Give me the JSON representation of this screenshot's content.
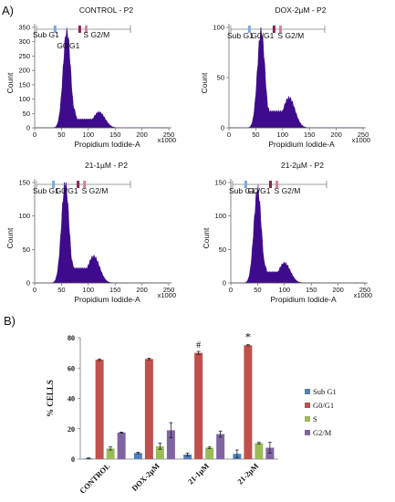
{
  "panel_a_label": "A)",
  "panel_b_label": "B)",
  "chart_data": [
    {
      "type": "area",
      "title": "CONTROL - P2",
      "xlabel": "Propidium Iodide-A",
      "ylabel": "Count",
      "x_multiplier": "x1000",
      "xlim": [
        0,
        250
      ],
      "ylim": [
        0,
        350
      ],
      "xticks": [
        "0",
        "50",
        "100",
        "150",
        "200",
        "250"
      ],
      "yticks": [
        "0",
        "50",
        "100",
        "150",
        "200",
        "250",
        "300",
        "350"
      ],
      "gates": [
        "Sub G1",
        "G0/G1",
        "S",
        "G2/M"
      ],
      "color": "#3d0b8c",
      "peaks": {
        "g1_x": 60,
        "g1_y": 340,
        "g2_x": 120,
        "g2_y": 55
      }
    },
    {
      "type": "area",
      "title": "DOX-2µM - P2",
      "xlabel": "Propidium Iodide-A",
      "ylabel": "Count",
      "x_multiplier": "x1000",
      "xlim": [
        0,
        250
      ],
      "ylim": [
        0,
        100
      ],
      "xticks": [
        "0",
        "50",
        "100",
        "150",
        "200",
        "250"
      ],
      "yticks": [
        "0",
        "50",
        "100"
      ],
      "gates": [
        "Sub G1",
        "G0/G1",
        "S",
        "G2/M"
      ],
      "color": "#3d0b8c",
      "peaks": {
        "g1_x": 60,
        "g1_y": 97,
        "g2_x": 112,
        "g2_y": 30
      }
    },
    {
      "type": "area",
      "title": "21-1µM - P2",
      "xlabel": "Propidium Iodide-A",
      "ylabel": "Count",
      "x_multiplier": "x1000",
      "xlim": [
        0,
        250
      ],
      "ylim": [
        0,
        150
      ],
      "xticks": [
        "0",
        "50",
        "100",
        "150",
        "200",
        "250"
      ],
      "yticks": [
        "0",
        "50",
        "100",
        "150"
      ],
      "gates": [
        "Sub G1",
        "G0/G1",
        "S",
        "G2/M"
      ],
      "color": "#3d0b8c",
      "peaks": {
        "g1_x": 57,
        "g1_y": 150,
        "g2_x": 110,
        "g2_y": 40
      }
    },
    {
      "type": "area",
      "title": "21-2µM - P2",
      "xlabel": "Propidium Iodide-A",
      "ylabel": "Count",
      "x_multiplier": "x1000",
      "xlim": [
        0,
        250
      ],
      "ylim": [
        0,
        150
      ],
      "xticks": [
        "0",
        "50",
        "100",
        "150",
        "200",
        "250"
      ],
      "yticks": [
        "0",
        "50",
        "100",
        "150"
      ],
      "gates": [
        "Sub G1",
        "G0/G1",
        "S",
        "G2/M"
      ],
      "color": "#3d0b8c",
      "peaks": {
        "g1_x": 50,
        "g1_y": 140,
        "g2_x": 100,
        "g2_y": 30
      }
    },
    {
      "type": "bar",
      "categories": [
        "CONTROL",
        "DOX-2µM",
        "21-1µM",
        "21-2µM"
      ],
      "series": [
        {
          "name": "Sub G1",
          "color": "#4f81bd",
          "values": [
            0.5,
            4,
            3,
            3.5
          ],
          "errors": [
            0.3,
            0.5,
            1.0,
            2.5
          ]
        },
        {
          "name": "G0/G1",
          "color": "#c0504d",
          "values": [
            65.5,
            66,
            70,
            75
          ],
          "errors": [
            0.5,
            0.5,
            1.0,
            0.4
          ]
        },
        {
          "name": "S",
          "color": "#9bbb59",
          "values": [
            7,
            8.5,
            7.5,
            10.5
          ],
          "errors": [
            1.0,
            2.0,
            0.5,
            0.5
          ]
        },
        {
          "name": "G2/M",
          "color": "#8064a2",
          "values": [
            17.5,
            19,
            16.5,
            7.5
          ],
          "errors": [
            0.3,
            5.0,
            2.0,
            3.5
          ]
        }
      ],
      "annotations": [
        "",
        "",
        "#",
        "*"
      ],
      "ylabel": "% CELLS",
      "xlabel": "",
      "ylim": [
        0,
        80
      ],
      "yticks": [
        "0",
        "20",
        "40",
        "60",
        "80"
      ],
      "legend": "right"
    }
  ]
}
